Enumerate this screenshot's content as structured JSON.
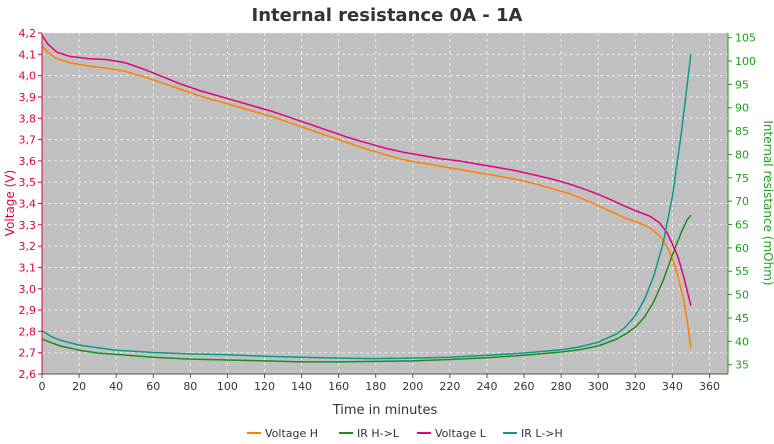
{
  "chart_data": {
    "type": "line",
    "title": "Internal resistance  0A - 1A",
    "xlabel": "Time in minutes",
    "ylabel": "Voltage (V)",
    "y2label": "Internal resistance (mOhm)",
    "xlim": [
      0,
      370
    ],
    "ylim": [
      2.6,
      4.2
    ],
    "y2lim": [
      33,
      106
    ],
    "xticks": [
      0,
      20,
      40,
      60,
      80,
      100,
      120,
      140,
      160,
      180,
      200,
      220,
      240,
      260,
      280,
      300,
      320,
      340,
      360
    ],
    "yticks": [
      "2,6",
      "2,7",
      "2,8",
      "2,9",
      "3,0",
      "3,1",
      "3,2",
      "3,3",
      "3,4",
      "3,5",
      "3,6",
      "3,7",
      "3,8",
      "3,9",
      "4,0",
      "4,1",
      "4,2"
    ],
    "y2ticks": [
      35,
      40,
      45,
      50,
      55,
      60,
      65,
      70,
      75,
      80,
      85,
      90,
      95,
      100,
      105
    ],
    "grid": true,
    "legend_position": "bottom",
    "colors": {
      "plot_bg": "#c0c0c0",
      "grid": "#e8e8e8",
      "voltage_axis": "#e0003c",
      "ir_axis": "#1aa01a"
    },
    "series": [
      {
        "name": "Voltage H",
        "axis": "left",
        "color": "#ff8000",
        "x": [
          0,
          3,
          8,
          15,
          25,
          35,
          45,
          55,
          65,
          75,
          85,
          95,
          105,
          115,
          125,
          135,
          145,
          155,
          165,
          175,
          185,
          195,
          205,
          215,
          225,
          235,
          245,
          255,
          265,
          275,
          285,
          295,
          305,
          315,
          322,
          328,
          333,
          337,
          340,
          343,
          346,
          348,
          350
        ],
        "y": [
          4.14,
          4.11,
          4.08,
          4.06,
          4.045,
          4.035,
          4.02,
          3.995,
          3.965,
          3.935,
          3.905,
          3.88,
          3.855,
          3.83,
          3.805,
          3.775,
          3.745,
          3.715,
          3.685,
          3.655,
          3.63,
          3.605,
          3.59,
          3.575,
          3.56,
          3.545,
          3.53,
          3.515,
          3.495,
          3.47,
          3.445,
          3.41,
          3.37,
          3.33,
          3.31,
          3.285,
          3.25,
          3.2,
          3.14,
          3.06,
          2.95,
          2.85,
          2.72
        ]
      },
      {
        "name": "IR H->L",
        "axis": "right",
        "color": "#1a8f1a",
        "x": [
          0,
          5,
          10,
          20,
          30,
          40,
          60,
          80,
          100,
          120,
          140,
          160,
          180,
          200,
          220,
          240,
          260,
          280,
          290,
          300,
          310,
          315,
          320,
          325,
          330,
          335,
          340,
          345,
          348,
          350
        ],
        "y": [
          40.5,
          39.7,
          39.0,
          38.1,
          37.5,
          37.2,
          36.6,
          36.2,
          36.0,
          35.8,
          35.6,
          35.6,
          35.7,
          35.8,
          36.1,
          36.5,
          37.0,
          37.7,
          38.2,
          39.0,
          40.5,
          41.6,
          43.0,
          45.2,
          48.5,
          53.0,
          58.5,
          63.5,
          66.0,
          67.0
        ]
      },
      {
        "name": "Voltage L",
        "axis": "left",
        "color": "#e6007a",
        "x": [
          0,
          3,
          8,
          15,
          25,
          35,
          45,
          55,
          65,
          75,
          85,
          95,
          105,
          115,
          125,
          135,
          145,
          155,
          165,
          175,
          185,
          195,
          205,
          215,
          225,
          235,
          245,
          255,
          265,
          275,
          285,
          295,
          305,
          315,
          322,
          328,
          333,
          337,
          340,
          343,
          346,
          348,
          350
        ],
        "y": [
          4.19,
          4.15,
          4.11,
          4.09,
          4.08,
          4.075,
          4.06,
          4.03,
          3.995,
          3.96,
          3.93,
          3.905,
          3.88,
          3.855,
          3.83,
          3.8,
          3.77,
          3.74,
          3.71,
          3.685,
          3.66,
          3.64,
          3.625,
          3.61,
          3.6,
          3.585,
          3.57,
          3.555,
          3.535,
          3.515,
          3.49,
          3.46,
          3.425,
          3.385,
          3.36,
          3.34,
          3.31,
          3.265,
          3.21,
          3.15,
          3.06,
          2.99,
          2.92
        ]
      },
      {
        "name": "IR L->H",
        "axis": "right",
        "color": "#0a9a8a",
        "x": [
          0,
          5,
          10,
          20,
          30,
          40,
          60,
          80,
          100,
          120,
          140,
          160,
          180,
          200,
          220,
          240,
          260,
          280,
          290,
          300,
          310,
          315,
          320,
          325,
          330,
          335,
          340,
          345,
          348,
          350
        ],
        "y": [
          42.3,
          41.0,
          40.2,
          39.2,
          38.6,
          38.1,
          37.6,
          37.3,
          37.1,
          36.8,
          36.6,
          36.4,
          36.3,
          36.4,
          36.6,
          37.0,
          37.5,
          38.2,
          38.8,
          39.8,
          41.6,
          43.2,
          45.5,
          49.0,
          54.0,
          61.0,
          71.0,
          85.0,
          95.0,
          101.5
        ]
      }
    ]
  }
}
